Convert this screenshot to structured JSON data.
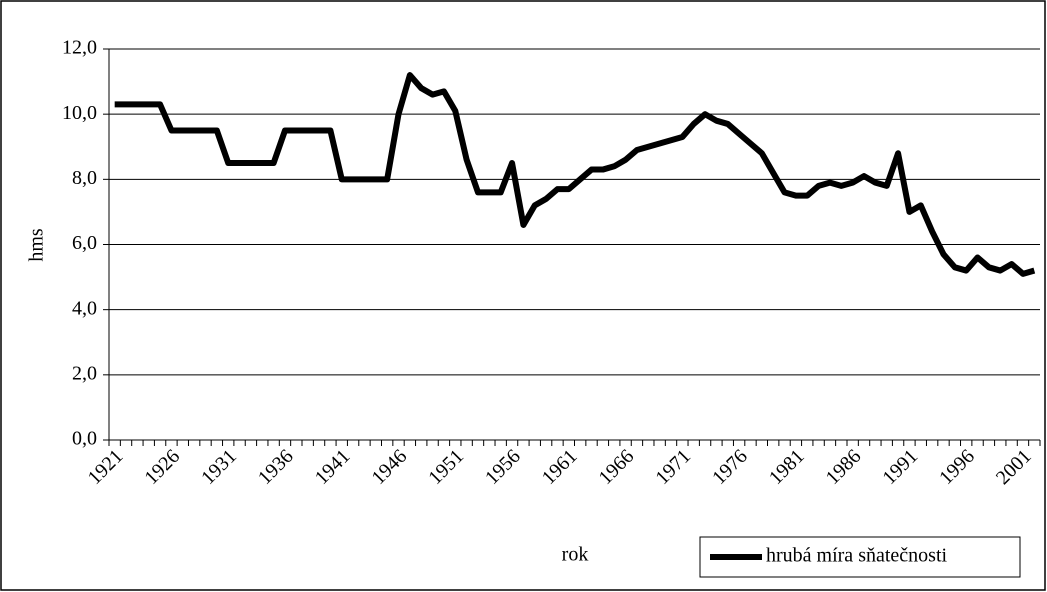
{
  "chart_data": {
    "type": "line",
    "x_label": "rok",
    "y_label": "hms",
    "categories": [
      "1921",
      null,
      null,
      null,
      null,
      "1926",
      null,
      null,
      null,
      null,
      "1931",
      null,
      null,
      null,
      null,
      "1936",
      null,
      null,
      null,
      null,
      "1941",
      null,
      null,
      null,
      null,
      "1946",
      null,
      null,
      null,
      null,
      "1951",
      null,
      null,
      null,
      null,
      "1956",
      null,
      null,
      null,
      null,
      "1961",
      null,
      null,
      null,
      null,
      "1966",
      null,
      null,
      null,
      null,
      "1971",
      null,
      null,
      null,
      null,
      "1976",
      null,
      null,
      null,
      null,
      "1981",
      null,
      null,
      null,
      null,
      "1986",
      null,
      null,
      null,
      null,
      "1991",
      null,
      null,
      null,
      null,
      "1996",
      null,
      null,
      null,
      null,
      "2001",
      null
    ],
    "series": [
      {
        "name": "hrubá míra sňatečnosti",
        "color": "#000000",
        "values": [
          10.3,
          10.3,
          10.3,
          10.3,
          10.3,
          9.5,
          9.5,
          9.5,
          9.5,
          9.5,
          8.5,
          8.5,
          8.5,
          8.5,
          8.5,
          9.5,
          9.5,
          9.5,
          9.5,
          9.5,
          8.0,
          8.0,
          8.0,
          8.0,
          8.0,
          10.0,
          11.2,
          10.8,
          10.6,
          10.7,
          10.1,
          8.6,
          7.6,
          7.6,
          7.6,
          8.5,
          6.6,
          7.2,
          7.4,
          7.7,
          7.7,
          8.0,
          8.3,
          8.3,
          8.4,
          8.6,
          8.9,
          9.0,
          9.1,
          9.2,
          9.3,
          9.7,
          10.0,
          9.8,
          9.7,
          9.4,
          9.1,
          8.8,
          8.2,
          7.6,
          7.5,
          7.5,
          7.8,
          7.9,
          7.8,
          7.9,
          8.1,
          7.9,
          7.8,
          8.8,
          7.0,
          7.2,
          6.4,
          5.7,
          5.3,
          5.2,
          5.6,
          5.3,
          5.2,
          5.4,
          5.1,
          5.2
        ]
      }
    ],
    "ylim": [
      0,
      12
    ],
    "yticks": [
      {
        "value": 0,
        "label": "0,0"
      },
      {
        "value": 2,
        "label": "2,0"
      },
      {
        "value": 4,
        "label": "4,0"
      },
      {
        "value": 6,
        "label": "6,0"
      },
      {
        "value": 8,
        "label": "8,0"
      },
      {
        "value": 10,
        "label": "10,0"
      },
      {
        "value": 12,
        "label": "12,0"
      }
    ],
    "grid": true,
    "legend": "bottom-right"
  }
}
